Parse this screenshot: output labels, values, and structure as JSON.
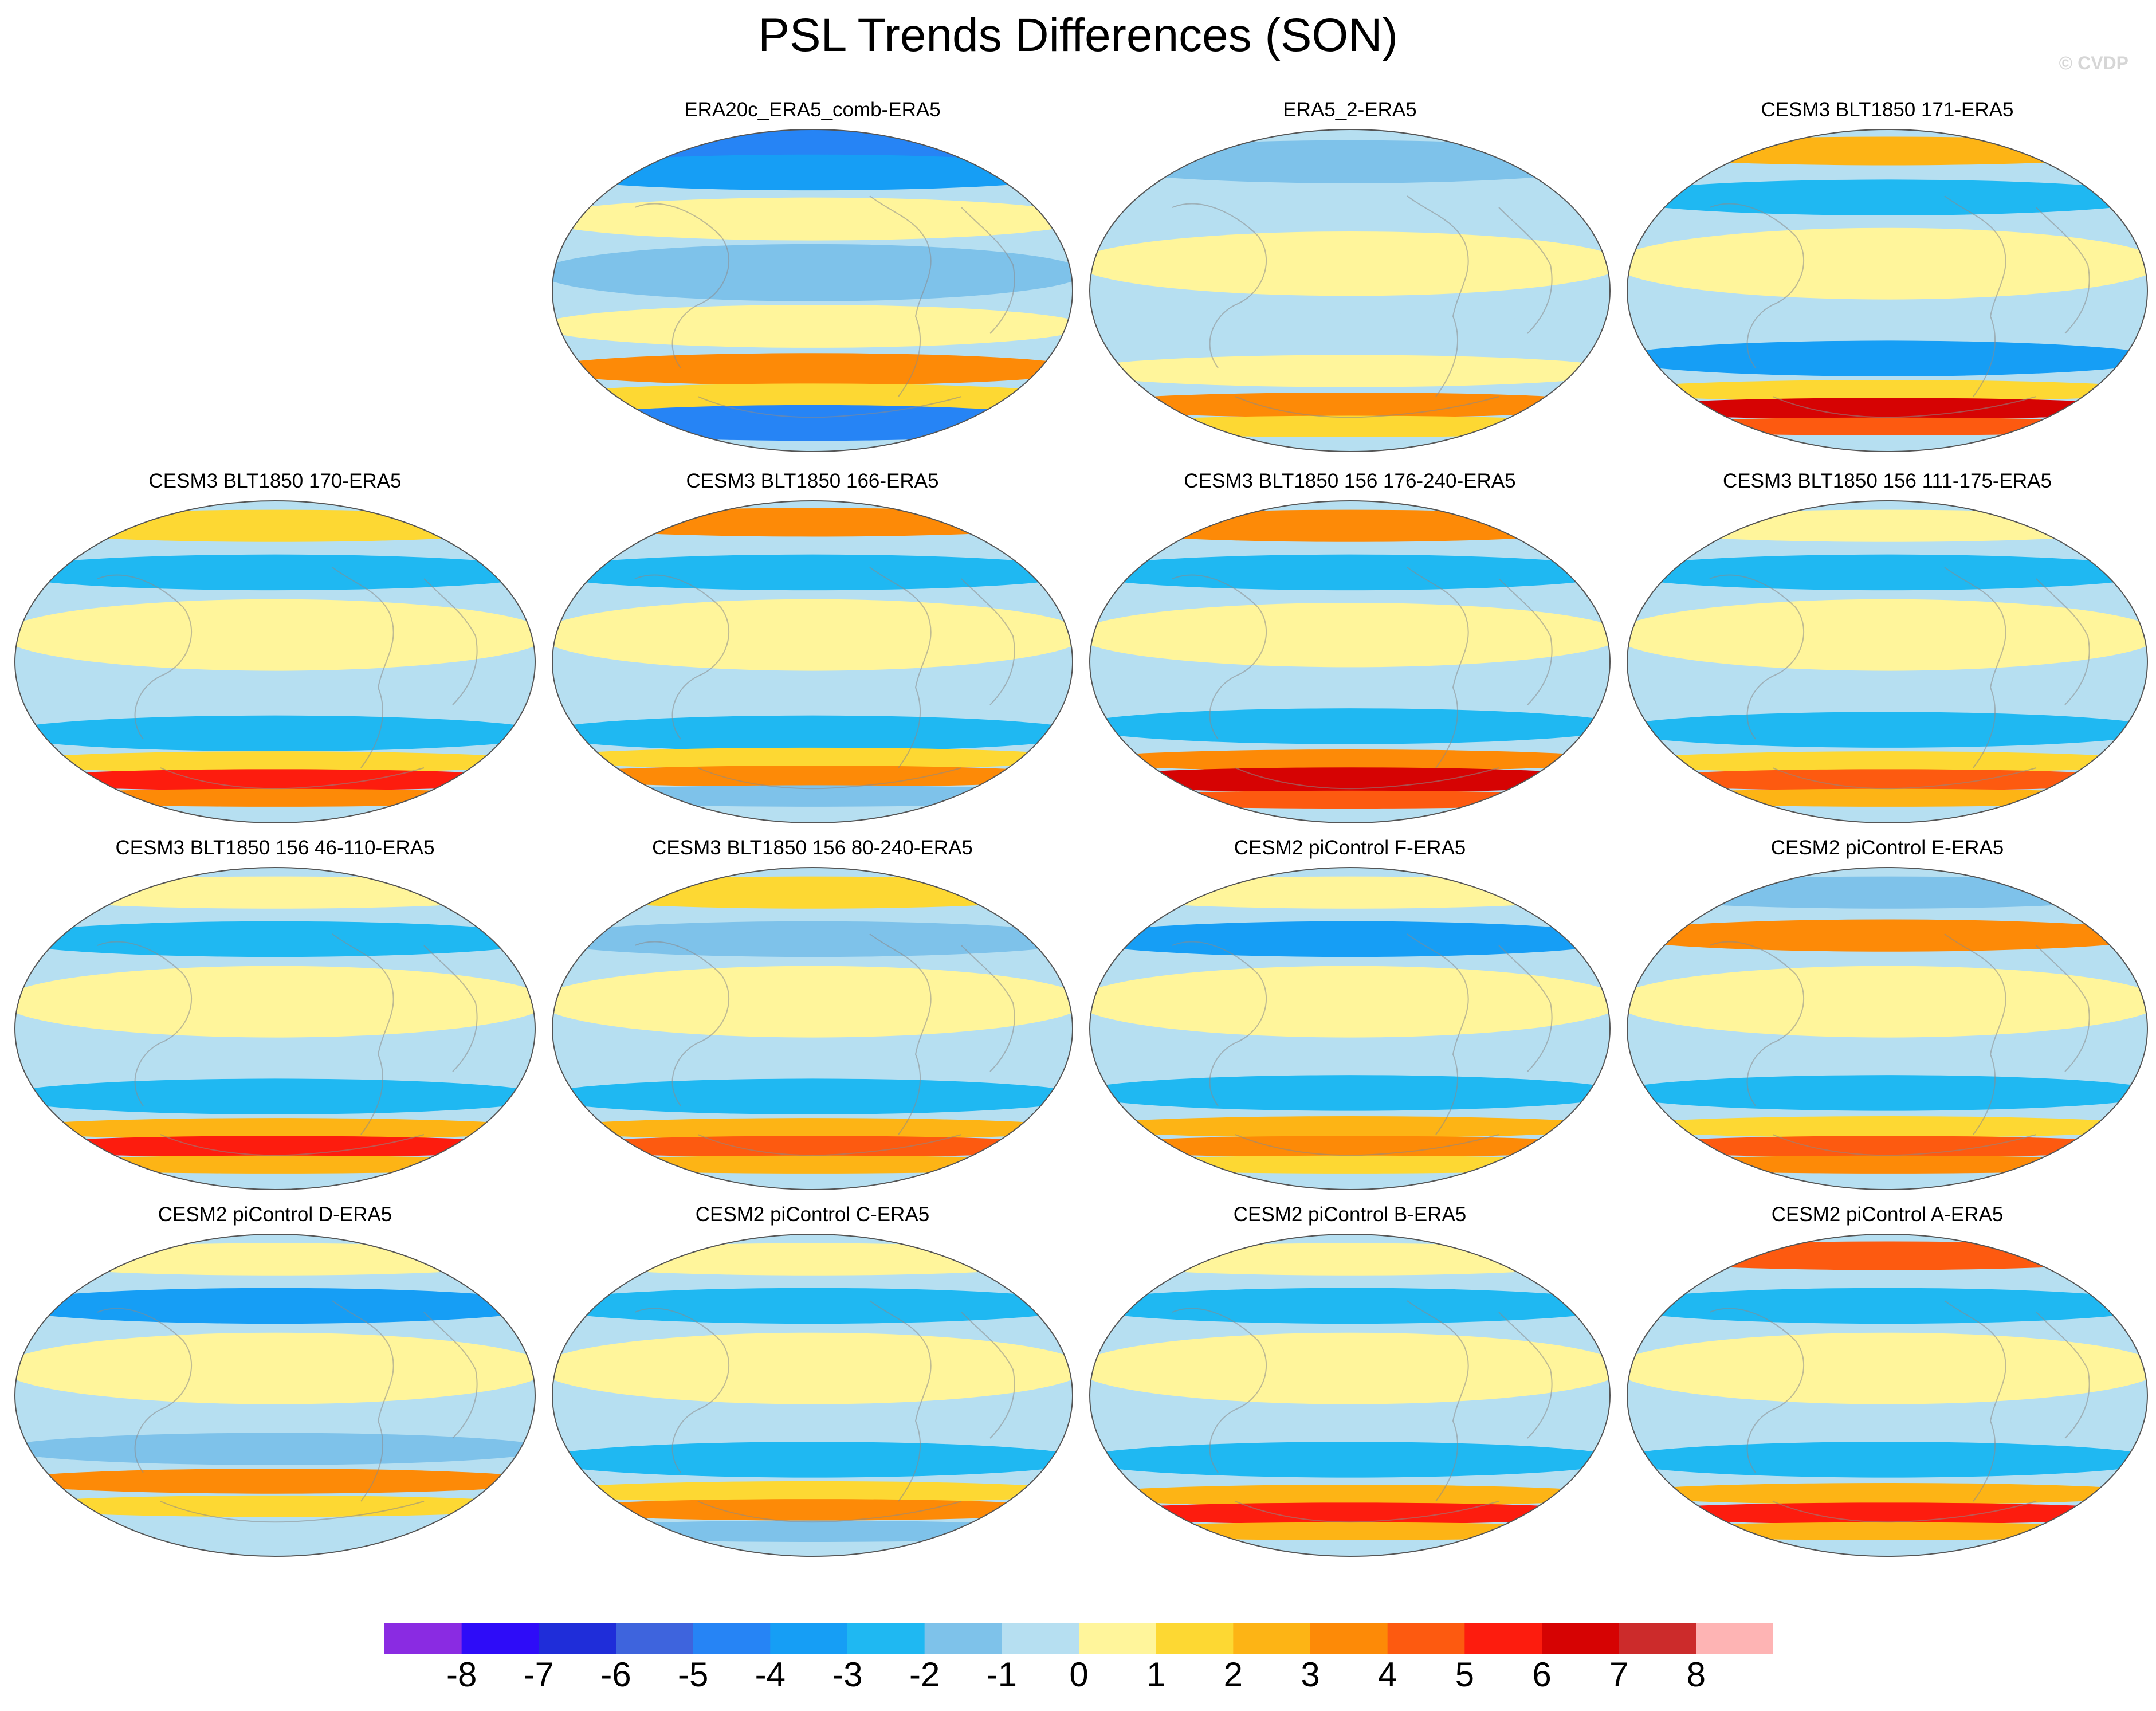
{
  "title": "PSL Trends Differences (SON)",
  "watermark": "© CVDP",
  "panels": [
    {
      "label": "ERA20c_ERA5_comb-ERA5",
      "bands": [
        {
          "lat": 82,
          "half": 9,
          "value": -4.8
        },
        {
          "lat": 66,
          "half": 10,
          "value": -3.1
        },
        {
          "lat": 40,
          "half": 12,
          "value": 0.9
        },
        {
          "lat": 10,
          "half": 16,
          "value": -1.6
        },
        {
          "lat": -20,
          "half": 12,
          "value": 0.7
        },
        {
          "lat": -44,
          "half": 9,
          "value": 3.6
        },
        {
          "lat": -60,
          "half": 8,
          "value": 1.4
        },
        {
          "lat": -74,
          "half": 10,
          "value": -4.2
        }
      ]
    },
    {
      "label": "ERA5_2-ERA5",
      "bands": [
        {
          "lat": 72,
          "half": 12,
          "value": -1.4
        },
        {
          "lat": 45,
          "half": 12,
          "value": -0.8
        },
        {
          "lat": 15,
          "half": 18,
          "value": 0.7
        },
        {
          "lat": -25,
          "half": 12,
          "value": -0.9
        },
        {
          "lat": -45,
          "half": 9,
          "value": 0.9
        },
        {
          "lat": -64,
          "half": 7,
          "value": 3.7
        },
        {
          "lat": -76,
          "half": 6,
          "value": 1.8
        }
      ]
    },
    {
      "label": "CESM3 BLT1850 171-ERA5",
      "bands": [
        {
          "lat": 78,
          "half": 8,
          "value": 2.3
        },
        {
          "lat": 52,
          "half": 10,
          "value": -2.8
        },
        {
          "lat": 15,
          "half": 20,
          "value": 0.6
        },
        {
          "lat": -38,
          "half": 10,
          "value": -3.1
        },
        {
          "lat": -56,
          "half": 6,
          "value": 1.3
        },
        {
          "lat": -66,
          "half": 6,
          "value": 6.1
        },
        {
          "lat": -76,
          "half": 5,
          "value": 4.2
        }
      ]
    },
    {
      "label": "CESM3 BLT1850 170-ERA5",
      "bands": [
        {
          "lat": 76,
          "half": 9,
          "value": 1.2
        },
        {
          "lat": 50,
          "half": 10,
          "value": -2.3
        },
        {
          "lat": 15,
          "half": 20,
          "value": 0.6
        },
        {
          "lat": -40,
          "half": 10,
          "value": -2.8
        },
        {
          "lat": -56,
          "half": 6,
          "value": 1.6
        },
        {
          "lat": -66,
          "half": 6,
          "value": 5.6
        },
        {
          "lat": -76,
          "half": 5,
          "value": 3.4
        }
      ]
    },
    {
      "label": "CESM3 BLT1850 166-ERA5",
      "bands": [
        {
          "lat": 78,
          "half": 8,
          "value": 3.3
        },
        {
          "lat": 50,
          "half": 10,
          "value": -2.4
        },
        {
          "lat": 15,
          "half": 20,
          "value": 0.6
        },
        {
          "lat": -40,
          "half": 10,
          "value": -2.4
        },
        {
          "lat": -54,
          "half": 6,
          "value": 1.9
        },
        {
          "lat": -64,
          "half": 6,
          "value": 3.8
        },
        {
          "lat": -75,
          "half": 6,
          "value": -1.2
        }
      ]
    },
    {
      "label": "CESM3 BLT1850 156 176-240-ERA5",
      "bands": [
        {
          "lat": 76,
          "half": 9,
          "value": 3.6
        },
        {
          "lat": 50,
          "half": 10,
          "value": -3.0
        },
        {
          "lat": 15,
          "half": 18,
          "value": 0.7
        },
        {
          "lat": -36,
          "half": 10,
          "value": -2.6
        },
        {
          "lat": -55,
          "half": 6,
          "value": 3.2
        },
        {
          "lat": -66,
          "half": 7,
          "value": 6.2
        },
        {
          "lat": -77,
          "half": 5,
          "value": 4.6
        }
      ]
    },
    {
      "label": "CESM3 BLT1850 156 111-175-ERA5",
      "bands": [
        {
          "lat": 76,
          "half": 9,
          "value": 0.8
        },
        {
          "lat": 50,
          "half": 10,
          "value": -2.2
        },
        {
          "lat": 15,
          "half": 20,
          "value": 0.6
        },
        {
          "lat": -38,
          "half": 10,
          "value": -2.6
        },
        {
          "lat": -56,
          "half": 6,
          "value": 1.4
        },
        {
          "lat": -66,
          "half": 6,
          "value": 4.6
        },
        {
          "lat": -76,
          "half": 5,
          "value": 2.1
        }
      ]
    },
    {
      "label": "CESM3 BLT1850 156 46-110-ERA5",
      "bands": [
        {
          "lat": 76,
          "half": 9,
          "value": 0.8
        },
        {
          "lat": 50,
          "half": 10,
          "value": -2.7
        },
        {
          "lat": 15,
          "half": 20,
          "value": 0.6
        },
        {
          "lat": -38,
          "half": 10,
          "value": -3.0
        },
        {
          "lat": -56,
          "half": 6,
          "value": 2.3
        },
        {
          "lat": -66,
          "half": 6,
          "value": 5.4
        },
        {
          "lat": -76,
          "half": 5,
          "value": 2.6
        }
      ]
    },
    {
      "label": "CESM3 BLT1850 156 80-240-ERA5",
      "bands": [
        {
          "lat": 76,
          "half": 9,
          "value": 1.1
        },
        {
          "lat": 50,
          "half": 10,
          "value": -1.8
        },
        {
          "lat": 15,
          "half": 20,
          "value": 0.6
        },
        {
          "lat": -38,
          "half": 10,
          "value": -2.5
        },
        {
          "lat": -56,
          "half": 6,
          "value": 2.1
        },
        {
          "lat": -66,
          "half": 6,
          "value": 4.7
        },
        {
          "lat": -76,
          "half": 5,
          "value": 2.4
        }
      ]
    },
    {
      "label": "CESM2 piControl F-ERA5",
      "bands": [
        {
          "lat": 76,
          "half": 9,
          "value": 0.8
        },
        {
          "lat": 50,
          "half": 10,
          "value": -3.2
        },
        {
          "lat": 15,
          "half": 20,
          "value": 0.6
        },
        {
          "lat": -36,
          "half": 10,
          "value": -2.4
        },
        {
          "lat": -55,
          "half": 6,
          "value": 2.7
        },
        {
          "lat": -66,
          "half": 6,
          "value": 3.6
        },
        {
          "lat": -76,
          "half": 5,
          "value": 1.7
        }
      ]
    },
    {
      "label": "CESM2 piControl E-ERA5",
      "bands": [
        {
          "lat": 76,
          "half": 9,
          "value": -2.0
        },
        {
          "lat": 52,
          "half": 9,
          "value": 3.1
        },
        {
          "lat": 15,
          "half": 20,
          "value": 0.6
        },
        {
          "lat": -36,
          "half": 10,
          "value": -2.7
        },
        {
          "lat": -55,
          "half": 6,
          "value": 1.8
        },
        {
          "lat": -66,
          "half": 6,
          "value": 4.8
        },
        {
          "lat": -76,
          "half": 5,
          "value": 3.2
        }
      ]
    },
    {
      "label": "CESM2 piControl D-ERA5",
      "bands": [
        {
          "lat": 76,
          "half": 9,
          "value": 0.8
        },
        {
          "lat": 50,
          "half": 10,
          "value": -3.1
        },
        {
          "lat": 15,
          "half": 20,
          "value": 0.6
        },
        {
          "lat": -30,
          "half": 9,
          "value": -1.9
        },
        {
          "lat": -48,
          "half": 7,
          "value": 3.0
        },
        {
          "lat": -62,
          "half": 6,
          "value": 1.5
        },
        {
          "lat": -75,
          "half": 6,
          "value": -0.8
        }
      ]
    },
    {
      "label": "CESM2 piControl C-ERA5",
      "bands": [
        {
          "lat": 76,
          "half": 9,
          "value": 0.9
        },
        {
          "lat": 50,
          "half": 10,
          "value": -2.3
        },
        {
          "lat": 15,
          "half": 20,
          "value": 0.6
        },
        {
          "lat": -36,
          "half": 10,
          "value": -2.2
        },
        {
          "lat": -54,
          "half": 6,
          "value": 1.8
        },
        {
          "lat": -64,
          "half": 6,
          "value": 3.6
        },
        {
          "lat": -76,
          "half": 6,
          "value": -1.5
        }
      ]
    },
    {
      "label": "CESM2 piControl B-ERA5",
      "bands": [
        {
          "lat": 76,
          "half": 9,
          "value": 0.7
        },
        {
          "lat": 50,
          "half": 10,
          "value": -2.6
        },
        {
          "lat": 15,
          "half": 20,
          "value": 0.6
        },
        {
          "lat": -36,
          "half": 10,
          "value": -2.7
        },
        {
          "lat": -56,
          "half": 6,
          "value": 2.1
        },
        {
          "lat": -66,
          "half": 6,
          "value": 5.2
        },
        {
          "lat": -76,
          "half": 5,
          "value": 2.5
        }
      ]
    },
    {
      "label": "CESM2 piControl A-ERA5",
      "bands": [
        {
          "lat": 78,
          "half": 8,
          "value": 4.2
        },
        {
          "lat": 50,
          "half": 10,
          "value": -2.4
        },
        {
          "lat": 15,
          "half": 20,
          "value": 0.6
        },
        {
          "lat": -36,
          "half": 10,
          "value": -2.6
        },
        {
          "lat": -55,
          "half": 6,
          "value": 2.6
        },
        {
          "lat": -66,
          "half": 6,
          "value": 5.3
        },
        {
          "lat": -76,
          "half": 5,
          "value": 2.6
        }
      ]
    }
  ],
  "colorbar": {
    "colors": [
      "#8a2be2",
      "#2e0cf8",
      "#1f2dd9",
      "#3e64dd",
      "#2684f5",
      "#169ef5",
      "#1fb8f2",
      "#7ec2ea",
      "#b6dff1",
      "#fff59b",
      "#fdd833",
      "#fdb415",
      "#fd8a07",
      "#fd5a10",
      "#fd1c0e",
      "#d60303",
      "#cc2b2b",
      "#feb4b4"
    ],
    "labels": [
      "-8",
      "-7",
      "-6",
      "-5",
      "-4",
      "-3",
      "-2",
      "-1",
      "0",
      "1",
      "2",
      "3",
      "4",
      "5",
      "6",
      "7",
      "8"
    ]
  }
}
